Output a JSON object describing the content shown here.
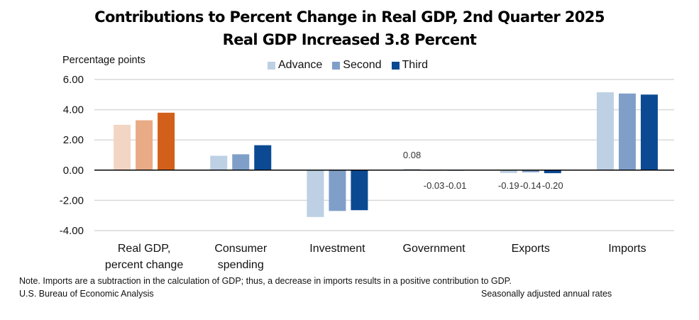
{
  "chart_data": {
    "type": "bar",
    "title": "Contributions to Percent Change in Real GDP, 2nd Quarter 2025",
    "subtitle": "Real GDP Increased 3.8 Percent",
    "ylabel": "Percentage points",
    "xlabel": "",
    "ylim": [
      -4,
      6
    ],
    "yticks": [
      6,
      4,
      2,
      0,
      -2,
      -4
    ],
    "ytick_labels": [
      "6.00",
      "4.00",
      "2.00",
      "0.00",
      "-2.00",
      "-4.00"
    ],
    "grid": true,
    "legend_position": "top-center",
    "categories": [
      [
        "Real GDP,",
        "percent change"
      ],
      [
        "Consumer",
        "spending"
      ],
      [
        "Investment"
      ],
      [
        "Government"
      ],
      [
        "Exports"
      ],
      [
        "Imports"
      ]
    ],
    "series": [
      {
        "name": "Advance",
        "values": [
          3.0,
          0.95,
          -3.1,
          0.08,
          -0.19,
          5.15
        ]
      },
      {
        "name": "Second",
        "values": [
          3.3,
          1.05,
          -2.7,
          -0.03,
          -0.14,
          5.07
        ]
      },
      {
        "name": "Third",
        "values": [
          3.8,
          1.65,
          -2.65,
          -0.01,
          -0.2,
          5.0
        ]
      }
    ],
    "series_colors": [
      "#bdd0e4",
      "#7f9fc9",
      "#0b4a93"
    ],
    "highlight_category_colors": [
      "#f3d5c4",
      "#e8ab85",
      "#d2601a"
    ],
    "data_labels": [
      {
        "category": 3,
        "series": 0,
        "text": "0.08"
      },
      {
        "category": 3,
        "series": 1,
        "text": "-0.03"
      },
      {
        "category": 3,
        "series": 2,
        "text": "-0.01"
      },
      {
        "category": 4,
        "series": 0,
        "text": "-0.19"
      },
      {
        "category": 4,
        "series": 1,
        "text": "-0.14"
      },
      {
        "category": 4,
        "series": 2,
        "text": "-0.20"
      }
    ]
  },
  "notes": {
    "note": "Note. Imports are a subtraction in the calculation of GDP; thus, a decrease in imports results in a positive contribution to GDP.",
    "source": "U.S. Bureau of Economic Analysis",
    "rates": "Seasonally adjusted annual rates"
  }
}
